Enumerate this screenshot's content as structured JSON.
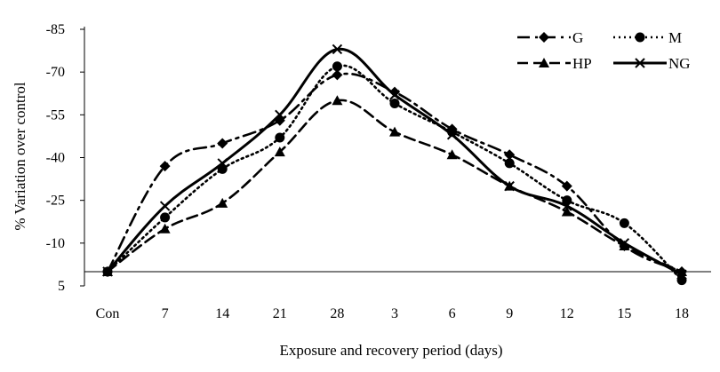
{
  "chart_data": {
    "type": "line",
    "title": "",
    "xlabel": "Exposure and recovery period (days)",
    "ylabel": "% Variation over control",
    "categories": [
      "Con",
      "7",
      "14",
      "21",
      "28",
      "3",
      "6",
      "9",
      "12",
      "15",
      "18"
    ],
    "ylim": [
      5,
      -85
    ],
    "y_axis_inverted": true,
    "yticks": [
      -85,
      -70,
      -55,
      -40,
      -25,
      -10,
      5
    ],
    "ytick_labels": [
      "-85",
      "-70",
      "-55",
      "-40",
      "-25",
      "-10",
      "5"
    ],
    "grid": false,
    "legend_position": "top-right",
    "series": [
      {
        "name": "G",
        "marker": "diamond",
        "dash": "dash-dot",
        "values": [
          0,
          -37,
          -45,
          -53,
          -69,
          -63,
          -50,
          -41,
          -30,
          -9,
          0
        ]
      },
      {
        "name": "M",
        "marker": "circle",
        "dash": "dotted",
        "values": [
          0,
          -19,
          -36,
          -47,
          -72,
          -59,
          -49,
          -38,
          -25,
          -17,
          3
        ]
      },
      {
        "name": "HP",
        "marker": "triangle",
        "dash": "dashed",
        "values": [
          0,
          -15,
          -24,
          -42,
          -60,
          -49,
          -41,
          -30,
          -21,
          -9,
          0
        ]
      },
      {
        "name": "NG",
        "marker": "x",
        "dash": "solid",
        "values": [
          0,
          -23,
          -38,
          -55,
          -78,
          -62,
          -48,
          -30,
          -23,
          -10,
          1
        ]
      }
    ]
  }
}
